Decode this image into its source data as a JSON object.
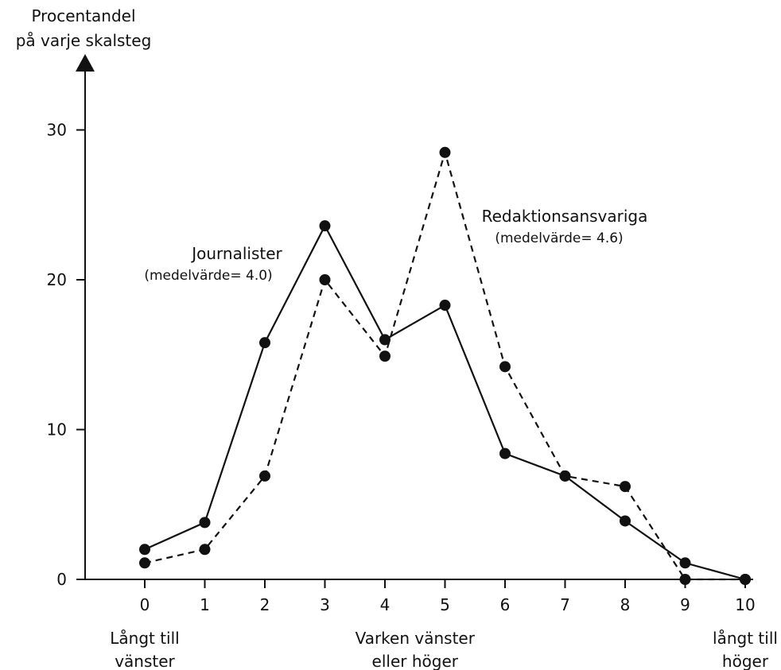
{
  "chart_data": {
    "type": "line",
    "ylabel_lines": [
      "Procentandel",
      "på varje skalsteg"
    ],
    "x": [
      0,
      1,
      2,
      3,
      4,
      5,
      6,
      7,
      8,
      9,
      10
    ],
    "x_tick_labels": [
      "0",
      "1",
      "2",
      "3",
      "4",
      "5",
      "6",
      "7",
      "8",
      "9",
      "10"
    ],
    "y_ticks": [
      0,
      10,
      20,
      30
    ],
    "y_tick_labels": [
      "0",
      "10",
      "20",
      "30"
    ],
    "xlim": [
      -1.2,
      10.5
    ],
    "ylim": [
      0,
      34
    ],
    "grid": false,
    "legend": "none",
    "x_annotations": [
      {
        "x": 0,
        "lines": [
          "Långt till",
          "vänster"
        ]
      },
      {
        "x": 4.5,
        "lines": [
          "Varken vänster",
          "eller höger"
        ]
      },
      {
        "x": 10,
        "lines": [
          "långt till",
          "höger"
        ]
      }
    ],
    "series": [
      {
        "name": "Journalister",
        "note": "(medelvärde= 4.0)",
        "style": "solid",
        "color": "#111111",
        "values": [
          2,
          3.8,
          15.8,
          23.6,
          16,
          18.3,
          8.4,
          6.9,
          3.9,
          1.1,
          0
        ]
      },
      {
        "name": "Redaktionsansvariga",
        "note": "(medelvärde= 4.6)",
        "style": "dashed",
        "color": "#111111",
        "values": [
          1.1,
          2,
          6.9,
          20,
          14.9,
          28.5,
          14.2,
          6.9,
          6.2,
          0,
          0
        ]
      }
    ]
  }
}
